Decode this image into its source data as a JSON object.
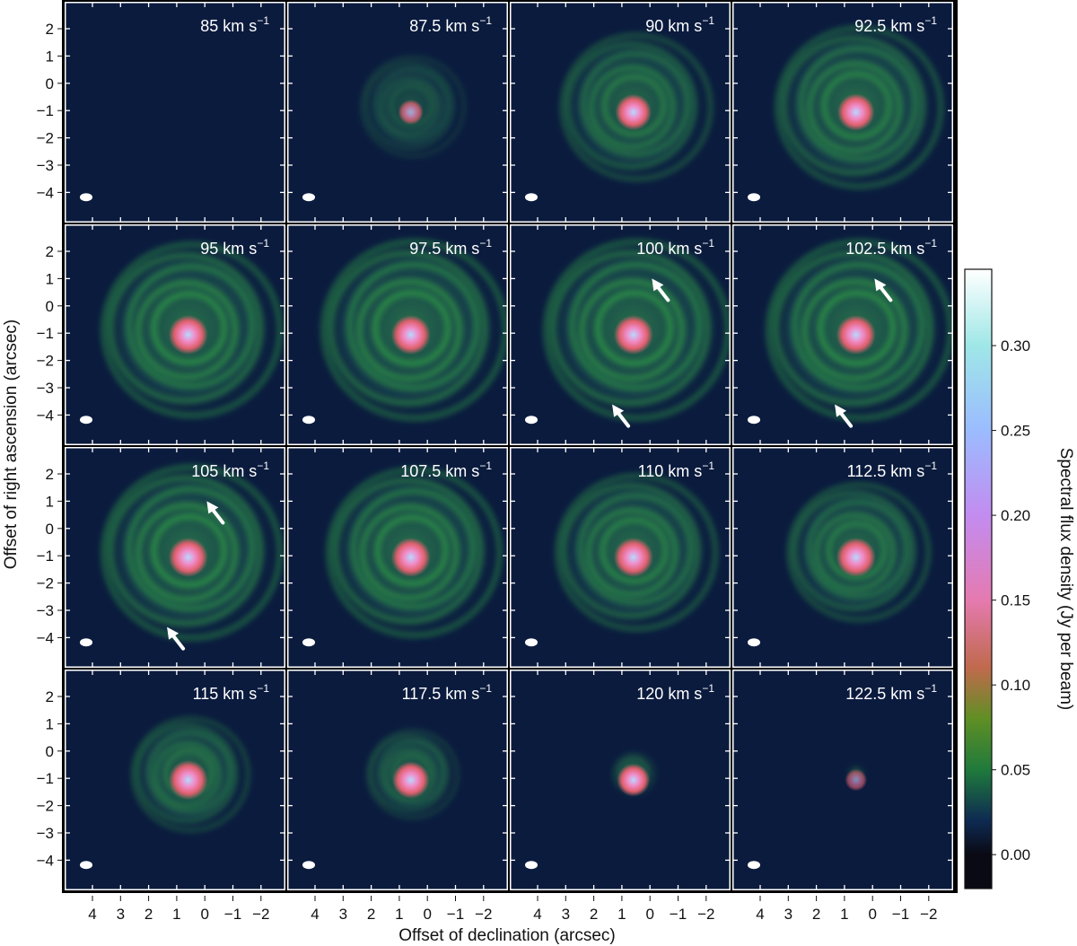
{
  "figure": {
    "y_axis_label": "Offset of right ascension (arcsec)",
    "x_axis_label": "Offset of declination (arcsec)",
    "colorbar_label": "Spectral flux density (Jy per beam)",
    "y_ticks": [
      "2",
      "1",
      "0",
      "−1",
      "−2",
      "−3",
      "−4"
    ],
    "x_ticks": [
      "4",
      "3",
      "2",
      "1",
      "0",
      "−1",
      "−2"
    ],
    "colorbar_ticks": [
      "0.30",
      "0.25",
      "0.20",
      "0.15",
      "0.10",
      "0.05",
      "0.00"
    ],
    "velocity_unit": "km s",
    "velocity_unit_exponent": "−1"
  },
  "panels": [
    {
      "velocity": "85",
      "core": 0.0,
      "shell": 0.0,
      "extent": 0.0,
      "arrows": []
    },
    {
      "velocity": "87.5",
      "core": 0.35,
      "shell": 0.45,
      "extent": 0.55,
      "arrows": []
    },
    {
      "velocity": "90",
      "core": 0.85,
      "shell": 0.75,
      "extent": 0.8,
      "arrows": []
    },
    {
      "velocity": "92.5",
      "core": 0.9,
      "shell": 0.8,
      "extent": 0.88,
      "arrows": []
    },
    {
      "velocity": "95",
      "core": 1.0,
      "shell": 0.85,
      "extent": 0.95,
      "arrows": []
    },
    {
      "velocity": "97.5",
      "core": 1.0,
      "shell": 0.85,
      "extent": 0.98,
      "arrows": []
    },
    {
      "velocity": "100",
      "core": 1.0,
      "shell": 0.85,
      "extent": 0.98,
      "arrows": [
        "upper-right",
        "lower-left"
      ]
    },
    {
      "velocity": "102.5",
      "core": 1.0,
      "shell": 0.85,
      "extent": 0.98,
      "arrows": [
        "upper-right",
        "lower-left"
      ]
    },
    {
      "velocity": "105",
      "core": 1.0,
      "shell": 0.85,
      "extent": 0.95,
      "arrows": [
        "upper-right",
        "lower-left"
      ]
    },
    {
      "velocity": "107.5",
      "core": 1.0,
      "shell": 0.85,
      "extent": 0.92,
      "arrows": []
    },
    {
      "velocity": "110",
      "core": 1.0,
      "shell": 0.82,
      "extent": 0.85,
      "arrows": []
    },
    {
      "velocity": "112.5",
      "core": 1.0,
      "shell": 0.8,
      "extent": 0.75,
      "arrows": []
    },
    {
      "velocity": "115",
      "core": 1.0,
      "shell": 0.75,
      "extent": 0.62,
      "arrows": []
    },
    {
      "velocity": "117.5",
      "core": 0.9,
      "shell": 0.65,
      "extent": 0.48,
      "arrows": []
    },
    {
      "velocity": "120",
      "core": 0.7,
      "shell": 0.45,
      "extent": 0.22,
      "arrows": []
    },
    {
      "velocity": "122.5",
      "core": 0.2,
      "shell": 0.15,
      "extent": 0.08,
      "arrows": []
    }
  ],
  "colors": {
    "background": "#0b1b3e",
    "shell": "#2f9a45",
    "core_warm": "#e0606e",
    "core_pink": "#f08cc8",
    "core_center": "#b8d8ff",
    "arrow": "#ffffff"
  },
  "colorbar_stops": [
    {
      "value": 0.0,
      "color": "#0a0a14"
    },
    {
      "value": 0.02,
      "color": "#0e2a52"
    },
    {
      "value": 0.05,
      "color": "#1f7a3c"
    },
    {
      "value": 0.08,
      "color": "#5f8f24"
    },
    {
      "value": 0.11,
      "color": "#c06a4c"
    },
    {
      "value": 0.15,
      "color": "#e57ab0"
    },
    {
      "value": 0.2,
      "color": "#c28cf0"
    },
    {
      "value": 0.25,
      "color": "#9bbcff"
    },
    {
      "value": 0.3,
      "color": "#9fe7e7"
    },
    {
      "value": 0.345,
      "color": "#ffffff"
    }
  ],
  "colorbar_range": [
    -0.02,
    0.345
  ]
}
